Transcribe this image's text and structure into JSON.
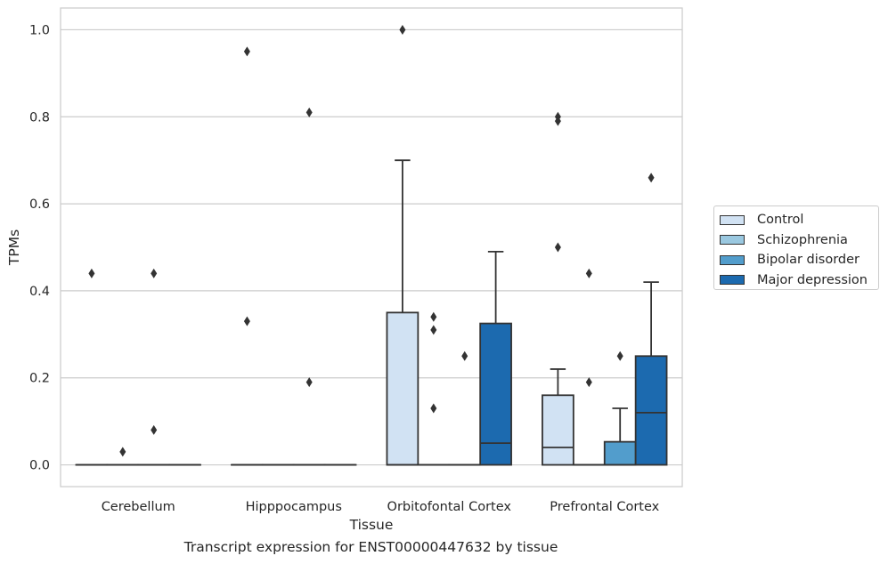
{
  "chart_data": {
    "type": "box",
    "xlabel": "Tissue",
    "ylabel": "TPMs",
    "ylim": [
      -0.05,
      1.05
    ],
    "yticks": [
      0.0,
      0.2,
      0.4,
      0.6,
      0.8,
      1.0
    ],
    "ytick_labels": [
      "0.0",
      "0.2",
      "0.4",
      "0.6",
      "0.8",
      "1.0"
    ],
    "categories": [
      "Cerebellum",
      "Hipppocampus",
      "Orbitofontal Cortex",
      "Prefrontal Cortex"
    ],
    "grid": "horizontal",
    "legend_position": "right",
    "series": [
      {
        "name": "Control",
        "color": "#d1e2f3",
        "boxes": [
          {
            "q1": 0,
            "median": 0,
            "q3": 0,
            "whislo": 0,
            "whishi": 0,
            "fliers": [
              0.44
            ]
          },
          {
            "q1": 0,
            "median": 0,
            "q3": 0,
            "whislo": 0,
            "whishi": 0,
            "fliers": [
              0.95,
              0.33
            ]
          },
          {
            "q1": 0,
            "median": 0,
            "q3": 0.35,
            "whislo": 0,
            "whishi": 0.7,
            "fliers": [
              1.0
            ]
          },
          {
            "q1": 0,
            "median": 0.04,
            "q3": 0.16,
            "whislo": 0,
            "whishi": 0.22,
            "fliers": [
              0.8,
              0.79,
              0.5
            ]
          }
        ]
      },
      {
        "name": "Schizophrenia",
        "color": "#9ac8e0",
        "boxes": [
          {
            "q1": 0,
            "median": 0,
            "q3": 0,
            "whislo": 0,
            "whishi": 0,
            "fliers": [
              0.03
            ]
          },
          {
            "q1": 0,
            "median": 0,
            "q3": 0,
            "whislo": 0,
            "whishi": 0,
            "fliers": []
          },
          {
            "q1": 0,
            "median": 0,
            "q3": 0,
            "whislo": 0,
            "whishi": 0,
            "fliers": [
              0.34,
              0.31,
              0.13
            ]
          },
          {
            "q1": 0,
            "median": 0,
            "q3": 0,
            "whislo": 0,
            "whishi": 0,
            "fliers": [
              0.44,
              0.19
            ]
          }
        ]
      },
      {
        "name": "Bipolar disorder",
        "color": "#529dcc",
        "boxes": [
          {
            "q1": 0,
            "median": 0,
            "q3": 0,
            "whislo": 0,
            "whishi": 0,
            "fliers": [
              0.44,
              0.08
            ]
          },
          {
            "q1": 0,
            "median": 0,
            "q3": 0,
            "whislo": 0,
            "whishi": 0,
            "fliers": [
              0.81,
              0.19
            ]
          },
          {
            "q1": 0,
            "median": 0,
            "q3": 0,
            "whislo": 0,
            "whishi": 0,
            "fliers": [
              0.25
            ]
          },
          {
            "q1": 0,
            "median": 0,
            "q3": 0.053,
            "whislo": 0,
            "whishi": 0.13,
            "fliers": [
              0.25
            ]
          }
        ]
      },
      {
        "name": "Major depression",
        "color": "#1c6aaf",
        "boxes": [
          {
            "q1": 0,
            "median": 0,
            "q3": 0,
            "whislo": 0,
            "whishi": 0,
            "fliers": []
          },
          {
            "q1": 0,
            "median": 0,
            "q3": 0,
            "whislo": 0,
            "whishi": 0,
            "fliers": []
          },
          {
            "q1": 0,
            "median": 0.05,
            "q3": 0.325,
            "whislo": 0,
            "whishi": 0.49,
            "fliers": []
          },
          {
            "q1": 0,
            "median": 0.12,
            "q3": 0.25,
            "whislo": 0,
            "whishi": 0.42,
            "fliers": [
              0.66
            ]
          }
        ]
      }
    ]
  },
  "caption": "Transcript expression for ENST00000447632 by tissue"
}
